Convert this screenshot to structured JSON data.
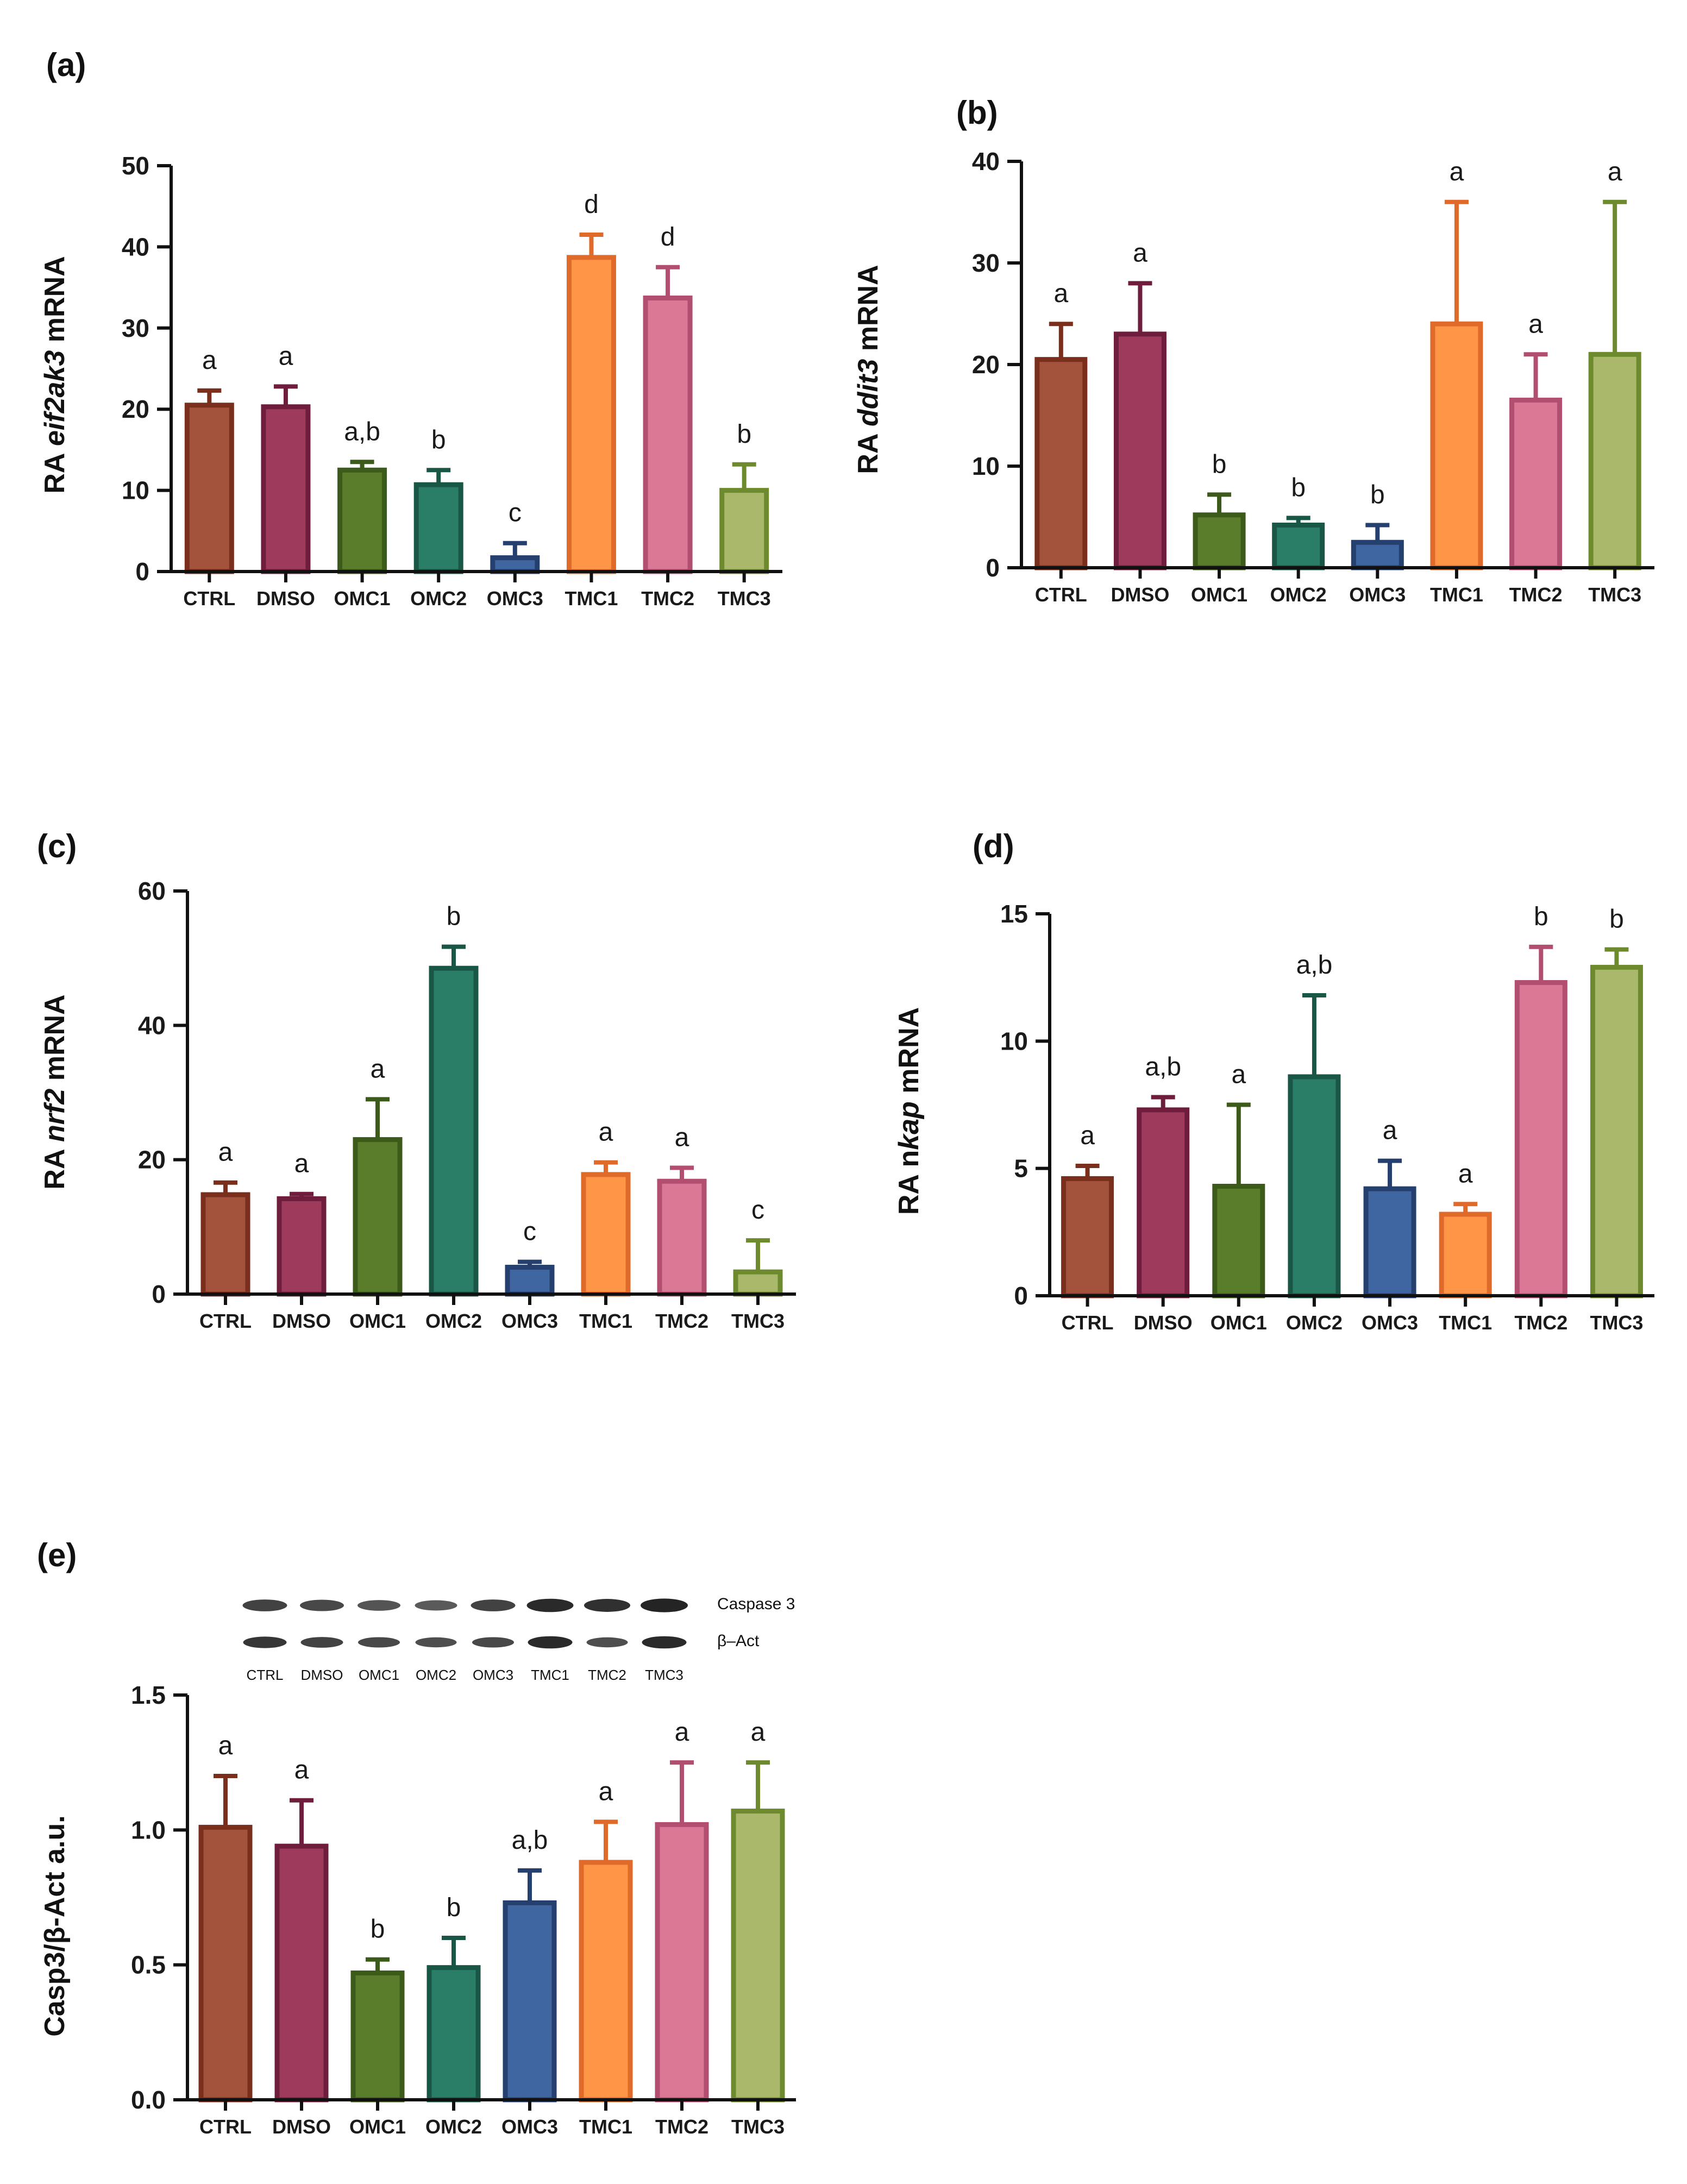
{
  "colors": {
    "CTRL": {
      "fill": "#A3523C",
      "stroke": "#7A2E1C"
    },
    "DMSO": {
      "fill": "#9E3A5C",
      "stroke": "#6E1D3D"
    },
    "OMC1": {
      "fill": "#5A7D2C",
      "stroke": "#3C5A1A"
    },
    "OMC2": {
      "fill": "#2A7D66",
      "stroke": "#1A5646"
    },
    "OMC3": {
      "fill": "#3F66A0",
      "stroke": "#253F6E"
    },
    "TMC1": {
      "fill": "#FF9547",
      "stroke": "#E06A2A"
    },
    "TMC2": {
      "fill": "#DA7896",
      "stroke": "#B24E70"
    },
    "TMC3": {
      "fill": "#A9B86A",
      "stroke": "#6E8A2E"
    }
  },
  "chart_data": [
    {
      "panel": "(a)",
      "type": "bar",
      "ylabel_prefix": "RA ",
      "ylabel_gene": "eif2ak3",
      "ylabel_suffix": " mRNA",
      "categories": [
        "CTRL",
        "DMSO",
        "OMC1",
        "OMC2",
        "OMC3",
        "TMC1",
        "TMC2",
        "TMC3"
      ],
      "values": [
        20.5,
        20.3,
        12.5,
        10.7,
        1.7,
        38.7,
        33.7,
        10.0
      ],
      "errors": [
        1.8,
        2.5,
        1.0,
        1.8,
        1.8,
        2.8,
        3.8,
        3.2
      ],
      "significance": [
        "a",
        "a",
        "a,b",
        "b",
        "c",
        "d",
        "d",
        "b"
      ],
      "ylim": [
        0,
        50
      ],
      "yticks": [
        0,
        10,
        20,
        30,
        40,
        50
      ]
    },
    {
      "panel": "(b)",
      "type": "bar",
      "ylabel_prefix": "RA ",
      "ylabel_gene": "ddit3",
      "ylabel_suffix": " mRNA",
      "categories": [
        "CTRL",
        "DMSO",
        "OMC1",
        "OMC2",
        "OMC3",
        "TMC1",
        "TMC2",
        "TMC3"
      ],
      "values": [
        20.5,
        23.0,
        5.2,
        4.2,
        2.5,
        24.0,
        16.5,
        21.0
      ],
      "errors": [
        3.5,
        5.0,
        2.0,
        0.7,
        1.7,
        12.0,
        4.5,
        15.0
      ],
      "significance": [
        "a",
        "a",
        "b",
        "b",
        "b",
        "a",
        "a",
        "a"
      ],
      "ylim": [
        0,
        40
      ],
      "yticks": [
        0,
        10,
        20,
        30,
        40
      ]
    },
    {
      "panel": "(c)",
      "type": "bar",
      "ylabel_prefix": "RA ",
      "ylabel_gene": "nrf2",
      "ylabel_suffix": " mRNA",
      "categories": [
        "CTRL",
        "DMSO",
        "OMC1",
        "OMC2",
        "OMC3",
        "TMC1",
        "TMC2",
        "TMC3"
      ],
      "values": [
        14.8,
        14.2,
        23.0,
        48.5,
        4.0,
        17.8,
        16.8,
        3.3
      ],
      "errors": [
        1.8,
        0.7,
        6.0,
        3.2,
        0.8,
        1.8,
        2.0,
        4.7
      ],
      "significance": [
        "a",
        "a",
        "a",
        "b",
        "c",
        "a",
        "a",
        "c"
      ],
      "ylim": [
        0,
        60
      ],
      "yticks": [
        0,
        20,
        40,
        60
      ]
    },
    {
      "panel": "(d)",
      "type": "bar",
      "ylabel_prefix": "RA n",
      "ylabel_gene": "kap",
      "ylabel_suffix": " mRNA",
      "categories": [
        "CTRL",
        "DMSO",
        "OMC1",
        "OMC2",
        "OMC3",
        "TMC1",
        "TMC2",
        "TMC3"
      ],
      "values": [
        4.6,
        7.3,
        4.3,
        8.6,
        4.2,
        3.2,
        12.3,
        12.9
      ],
      "errors": [
        0.5,
        0.5,
        3.2,
        3.2,
        1.1,
        0.4,
        1.4,
        0.7
      ],
      "significance": [
        "a",
        "a,b",
        "a",
        "a,b",
        "a",
        "a",
        "b",
        "b"
      ],
      "ylim": [
        0,
        15
      ],
      "yticks": [
        0,
        5,
        10,
        15
      ]
    },
    {
      "panel": "(e)",
      "type": "bar",
      "ylabel_prefix": "Casp3/β-Act a.u.",
      "ylabel_gene": "",
      "ylabel_suffix": "",
      "categories": [
        "CTRL",
        "DMSO",
        "OMC1",
        "OMC2",
        "OMC3",
        "TMC1",
        "TMC2",
        "TMC3"
      ],
      "values": [
        1.01,
        0.94,
        0.47,
        0.49,
        0.73,
        0.88,
        1.02,
        1.07
      ],
      "errors": [
        0.19,
        0.17,
        0.05,
        0.11,
        0.12,
        0.15,
        0.23,
        0.18
      ],
      "significance": [
        "a",
        "a",
        "b",
        "b",
        "a,b",
        "a",
        "a",
        "a"
      ],
      "ylim": [
        0,
        1.5
      ],
      "yticks": [
        "0.0",
        "0.5",
        "1.0",
        "1.5"
      ]
    }
  ],
  "blot": {
    "band_labels": [
      "Caspase 3",
      "β–Act"
    ],
    "lane_labels": [
      "CTRL",
      "DMSO",
      "OMC1",
      "OMC2",
      "OMC3",
      "TMC1",
      "TMC2",
      "TMC3"
    ],
    "casp3_intensity": [
      0.7,
      0.65,
      0.55,
      0.5,
      0.7,
      0.9,
      0.85,
      0.95
    ],
    "bact_intensity": [
      0.8,
      0.7,
      0.65,
      0.6,
      0.65,
      0.9,
      0.6,
      0.9
    ]
  }
}
